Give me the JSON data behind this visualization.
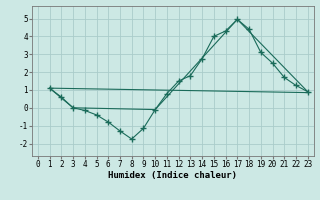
{
  "xlabel": "Humidex (Indice chaleur)",
  "bg_color": "#cce8e4",
  "grid_color": "#aaccca",
  "line_color": "#1a6b5a",
  "xlim": [
    -0.5,
    23.5
  ],
  "ylim": [
    -2.7,
    5.7
  ],
  "xticks": [
    0,
    1,
    2,
    3,
    4,
    5,
    6,
    7,
    8,
    9,
    10,
    11,
    12,
    13,
    14,
    15,
    16,
    17,
    18,
    19,
    20,
    21,
    22,
    23
  ],
  "yticks": [
    -2,
    -1,
    0,
    1,
    2,
    3,
    4,
    5
  ],
  "line1_x": [
    1,
    2,
    3,
    4,
    5,
    6,
    7,
    8,
    9,
    10,
    11,
    12,
    13,
    14,
    15,
    16,
    17,
    18,
    19,
    20,
    21,
    22,
    23
  ],
  "line1_y": [
    1.1,
    0.6,
    0.0,
    -0.15,
    -0.4,
    -0.8,
    -1.3,
    -1.75,
    -1.15,
    -0.1,
    0.8,
    1.5,
    1.8,
    2.75,
    4.0,
    4.3,
    4.95,
    4.4,
    3.1,
    2.5,
    1.7,
    1.25,
    0.9
  ],
  "line2_x": [
    1,
    3,
    10,
    17,
    23
  ],
  "line2_y": [
    1.1,
    0.0,
    -0.1,
    4.95,
    0.9
  ],
  "line3_x": [
    1,
    23
  ],
  "line3_y": [
    1.1,
    0.85
  ],
  "figsize": [
    3.2,
    2.0
  ],
  "dpi": 100
}
